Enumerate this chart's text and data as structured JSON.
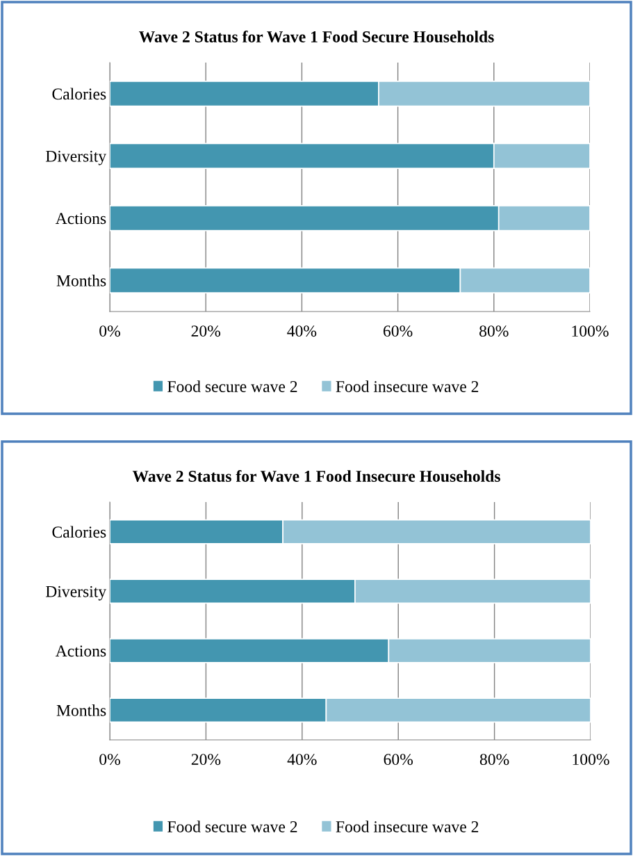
{
  "chart_data": [
    {
      "type": "bar",
      "title": "Wave 2 Status for Wave 1 Food Secure Households",
      "categories": [
        "Calories",
        "Diversity",
        "Actions",
        "Months"
      ],
      "stacked": true,
      "orientation": "horizontal",
      "series": [
        {
          "name": "Food secure wave 2",
          "color": "#4396b0",
          "values": [
            56,
            80,
            81,
            73
          ]
        },
        {
          "name": "Food insecure wave 2",
          "color": "#93c3d6",
          "values": [
            44,
            20,
            19,
            27
          ]
        }
      ],
      "xlim": [
        0,
        100
      ],
      "xticks": [
        {
          "value": 0,
          "label": "0%"
        },
        {
          "value": 20,
          "label": "20%"
        },
        {
          "value": 40,
          "label": "40%"
        },
        {
          "value": 60,
          "label": "60%"
        },
        {
          "value": 80,
          "label": "80%"
        },
        {
          "value": 100,
          "label": "100%"
        }
      ],
      "grid": "x",
      "legend": "bottom"
    },
    {
      "type": "bar",
      "title": "Wave 2 Status for Wave 1 Food Insecure Households",
      "categories": [
        "Calories",
        "Diversity",
        "Actions",
        "Months"
      ],
      "stacked": true,
      "orientation": "horizontal",
      "series": [
        {
          "name": "Food secure wave 2",
          "color": "#4396b0",
          "values": [
            36,
            51,
            58,
            45
          ]
        },
        {
          "name": "Food insecure wave 2",
          "color": "#93c3d6",
          "values": [
            64,
            49,
            42,
            55
          ]
        }
      ],
      "xlim": [
        0,
        100
      ],
      "xticks": [
        {
          "value": 0,
          "label": "0%"
        },
        {
          "value": 20,
          "label": "20%"
        },
        {
          "value": 40,
          "label": "40%"
        },
        {
          "value": 60,
          "label": "60%"
        },
        {
          "value": 80,
          "label": "80%"
        },
        {
          "value": 100,
          "label": "100%"
        }
      ],
      "grid": "x",
      "legend": "bottom"
    }
  ]
}
